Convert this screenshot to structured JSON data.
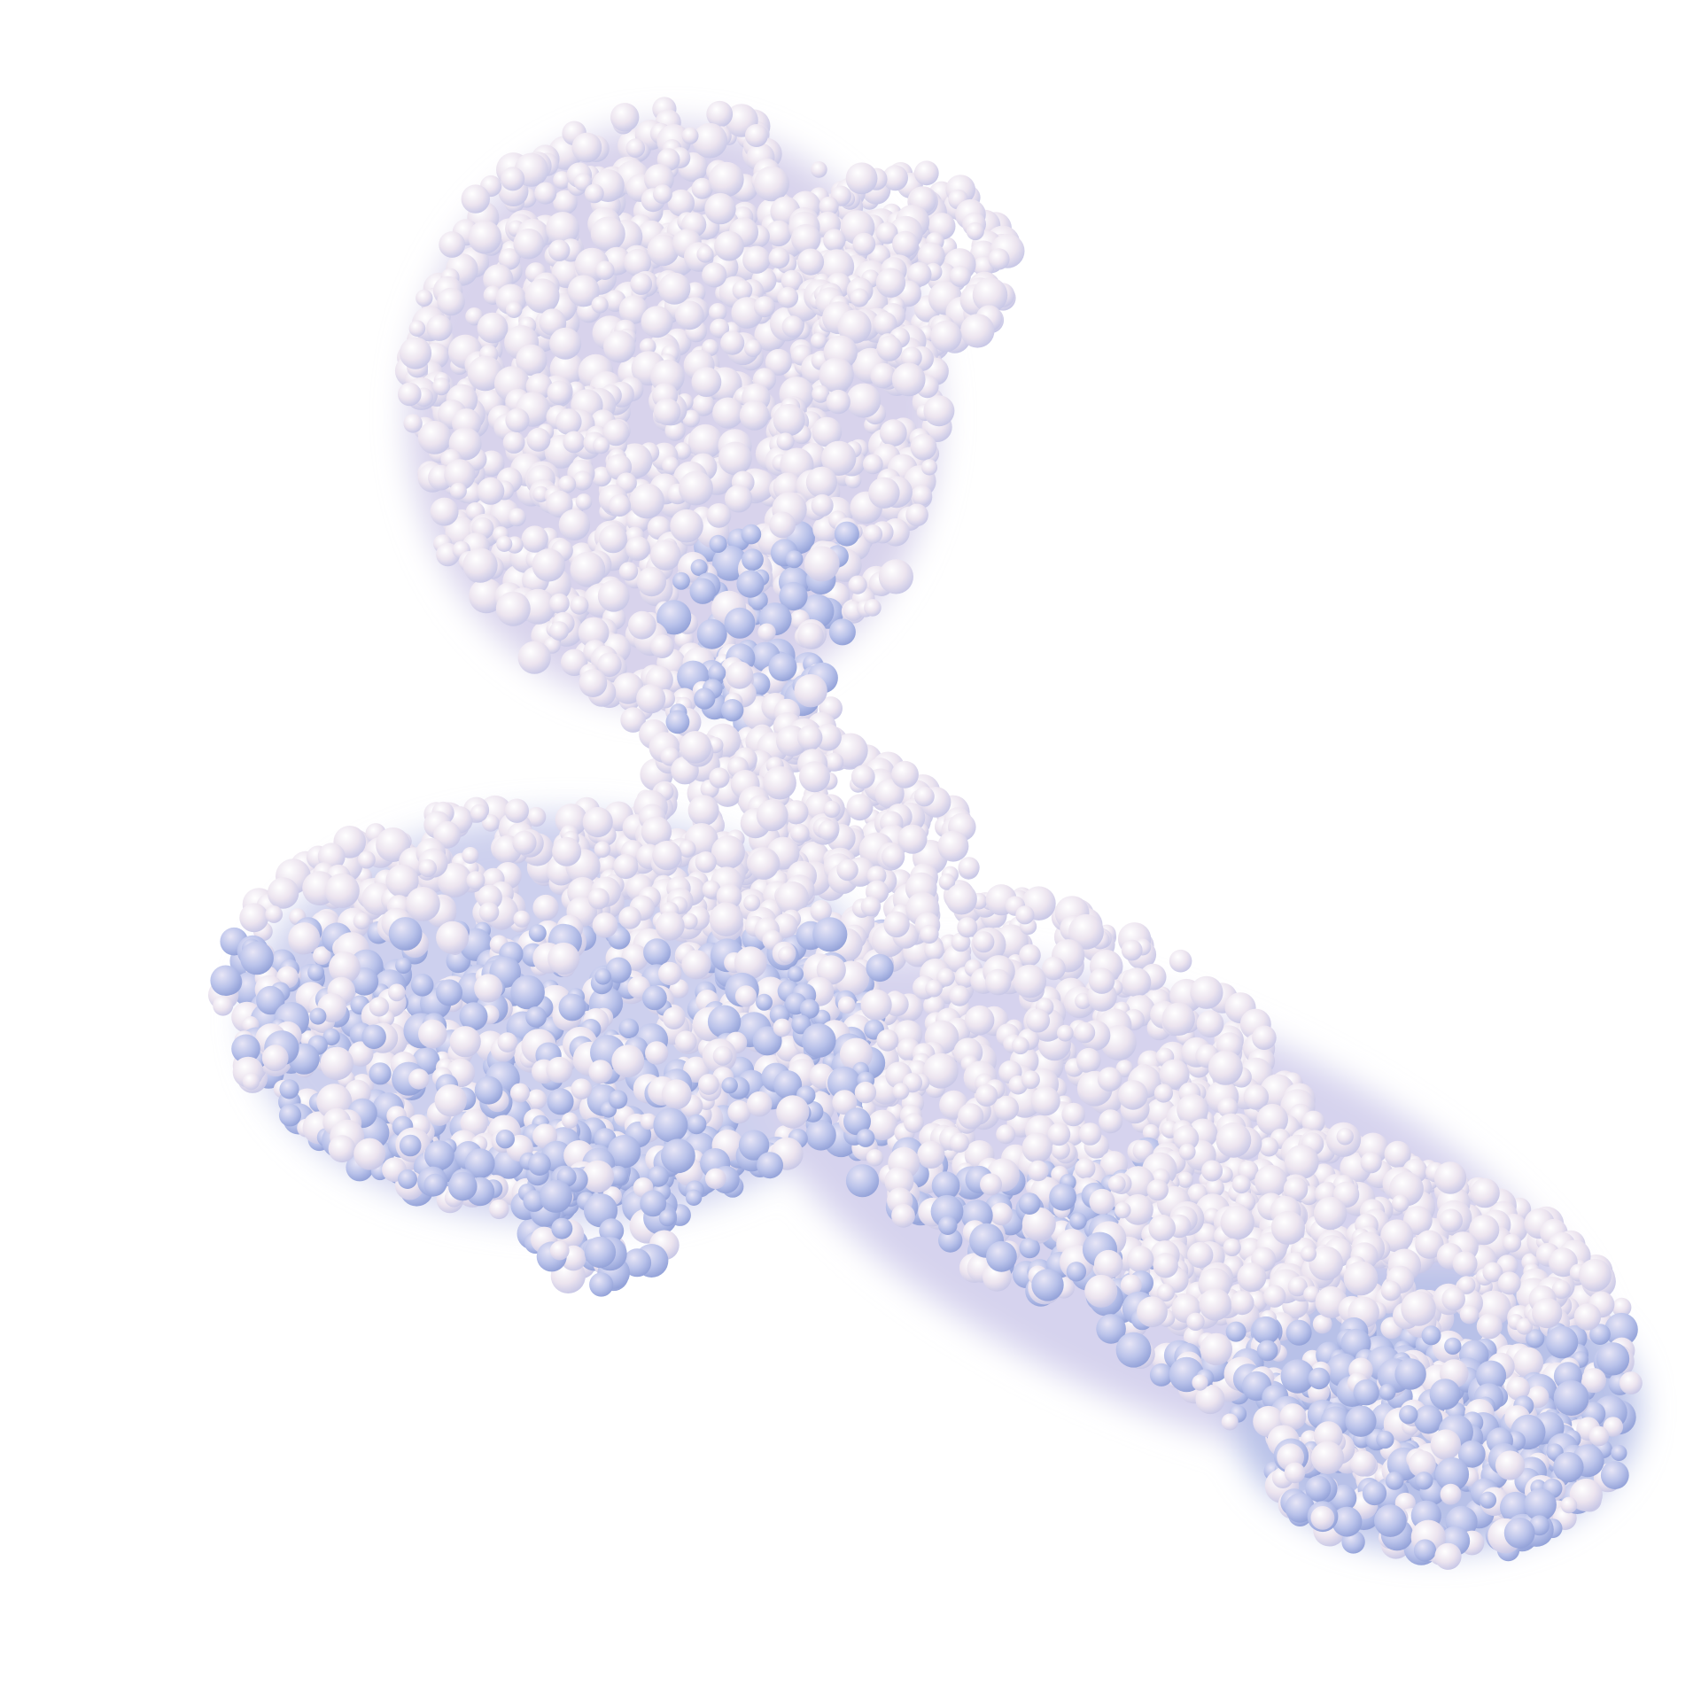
{
  "scene": {
    "subject": "protein-surface-render",
    "background_color": "#ffffff",
    "colors": {
      "highlight": "#f6f0f4",
      "light": "#ebe2ee",
      "mid": "#cfcdea",
      "shadow": "#a6b3e2",
      "deep": "#8f9fd6"
    }
  }
}
